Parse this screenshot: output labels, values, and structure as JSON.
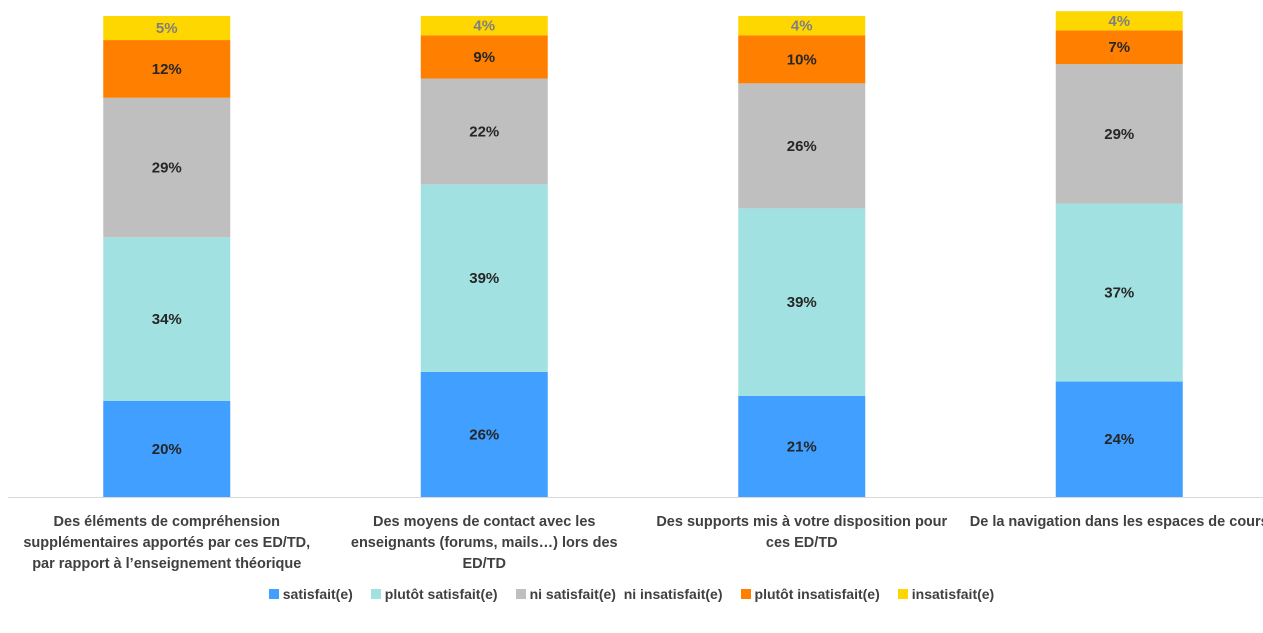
{
  "chart_data": {
    "type": "stacked-bar",
    "categories": [
      "Des éléments de compréhension supplémentaires apportés par ces ED/TD, par rapport à l’enseignement théorique",
      "Des moyens de contact avec les enseignants (forums, mails…) lors des ED/TD",
      "Des supports mis à votre disposition pour ces ED/TD",
      "De la navigation dans les espaces de cours"
    ],
    "series": [
      {
        "name": "satisfait(e)",
        "color": "#409fff",
        "values": [
          20,
          26,
          21,
          24
        ],
        "value_labels": [
          "20%",
          "26%",
          "21%",
          "24%"
        ]
      },
      {
        "name": "plutôt satisfait(e)",
        "color": "#a2e1e1",
        "values": [
          34,
          39,
          39,
          37
        ],
        "value_labels": [
          "34%",
          "39%",
          "39%",
          "37%"
        ]
      },
      {
        "name": "ni satisfait(e)  ni insatisfait(e)",
        "color": "#bfbfbf",
        "values": [
          29,
          22,
          26,
          29
        ],
        "value_labels": [
          "29%",
          "22%",
          "26%",
          "29%"
        ]
      },
      {
        "name": "plutôt insatisfait(e)",
        "color": "#ff8000",
        "values": [
          12,
          9,
          10,
          7
        ],
        "value_labels": [
          "12%",
          "9%",
          "10%",
          "7%"
        ]
      },
      {
        "name": "insatisfait(e)",
        "color": "#ffd700",
        "values": [
          5,
          4,
          4,
          4
        ],
        "value_labels": [
          "5%",
          "4%",
          "4%",
          "4%"
        ]
      }
    ]
  }
}
